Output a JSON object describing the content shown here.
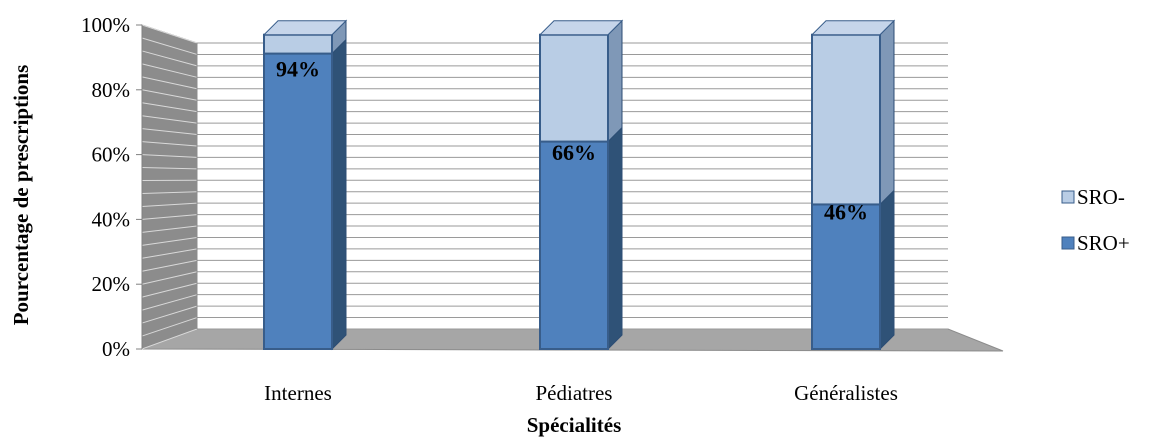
{
  "chart_data": {
    "type": "bar",
    "stacked": true,
    "percent_stacked": true,
    "three_d": true,
    "categories": [
      "Internes",
      "Pédiatres",
      "Généralistes"
    ],
    "series": [
      {
        "name": "SRO+",
        "values": [
          94,
          66,
          46
        ],
        "color": "#4F81BD"
      },
      {
        "name": "SRO-",
        "values": [
          6,
          34,
          54
        ],
        "color": "#B9CDE5"
      }
    ],
    "data_labels": [
      "94%",
      "66%",
      "46%"
    ],
    "ylim": [
      0,
      100
    ],
    "y_ticks": [
      "0%",
      "20%",
      "40%",
      "60%",
      "80%",
      "100%"
    ],
    "xlabel": "Spécialités",
    "ylabel": "Pourcentage de prescriptions",
    "grid": true,
    "legend": "right"
  }
}
